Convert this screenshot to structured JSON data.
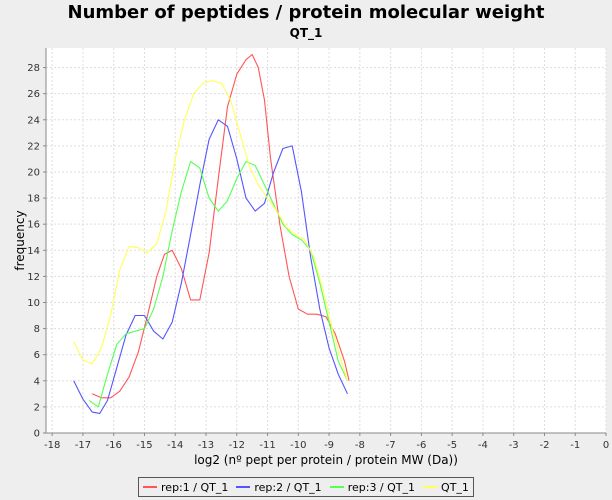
{
  "chart_data": {
    "type": "line",
    "title": "Number of peptides / protein molecular weight",
    "subtitle": "QT_1",
    "xlabel": "log2 (nº pept per protein / protein MW (Da))",
    "ylabel": "frequency",
    "xlim": [
      -18.2,
      0
    ],
    "ylim": [
      0,
      29.5
    ],
    "xticks": [
      -18,
      -17,
      -16,
      -15,
      -14,
      -13,
      -12,
      -11,
      -10,
      -9,
      -8,
      -7,
      -6,
      -5,
      -4,
      -3,
      -2,
      -1,
      0
    ],
    "yticks": [
      0,
      2,
      4,
      6,
      8,
      10,
      12,
      14,
      16,
      18,
      20,
      22,
      24,
      26,
      28
    ],
    "grid": true,
    "legend_position": "bottom",
    "series": [
      {
        "name": "rep:1 / QT_1",
        "color": "#ff5555",
        "x": [
          -16.7,
          -16.4,
          -16.1,
          -15.8,
          -15.5,
          -15.2,
          -14.9,
          -14.6,
          -14.35,
          -14.1,
          -13.8,
          -13.5,
          -13.2,
          -12.9,
          -12.6,
          -12.3,
          -12.0,
          -11.7,
          -11.5,
          -11.3,
          -11.1,
          -10.9,
          -10.6,
          -10.3,
          -10.0,
          -9.7,
          -9.4,
          -9.1,
          -8.8,
          -8.5,
          -8.35
        ],
        "values": [
          3.0,
          2.7,
          2.7,
          3.2,
          4.3,
          6.2,
          9.0,
          12.0,
          13.7,
          14.0,
          12.6,
          10.2,
          10.2,
          13.8,
          19.5,
          25.0,
          27.5,
          28.6,
          29.0,
          28.0,
          25.5,
          21.0,
          16.0,
          12.0,
          9.5,
          9.1,
          9.1,
          8.9,
          7.6,
          5.5,
          4.0
        ]
      },
      {
        "name": "rep:2 / QT_1",
        "color": "#5555ff",
        "x": [
          -17.3,
          -17.0,
          -16.7,
          -16.45,
          -16.2,
          -15.9,
          -15.6,
          -15.3,
          -15.0,
          -14.7,
          -14.4,
          -14.1,
          -13.8,
          -13.5,
          -13.2,
          -12.9,
          -12.6,
          -12.3,
          -12.0,
          -11.7,
          -11.4,
          -11.1,
          -10.8,
          -10.5,
          -10.2,
          -9.9,
          -9.6,
          -9.3,
          -9.0,
          -8.7,
          -8.4
        ],
        "values": [
          4.0,
          2.6,
          1.6,
          1.5,
          2.5,
          5.0,
          7.5,
          9.0,
          9.0,
          7.8,
          7.2,
          8.5,
          11.5,
          15.2,
          19.0,
          22.5,
          24.0,
          23.5,
          21.0,
          18.0,
          17.0,
          17.6,
          20.0,
          21.8,
          22.0,
          18.5,
          13.5,
          9.5,
          6.5,
          4.5,
          3.0
        ]
      },
      {
        "name": "rep:3 / QT_1",
        "color": "#55ff55",
        "x": [
          -16.8,
          -16.5,
          -16.2,
          -15.9,
          -15.6,
          -15.3,
          -15.0,
          -14.7,
          -14.4,
          -14.1,
          -13.8,
          -13.5,
          -13.2,
          -12.9,
          -12.6,
          -12.3,
          -12.0,
          -11.7,
          -11.4,
          -11.1,
          -10.8,
          -10.5,
          -10.2,
          -9.9,
          -9.6,
          -9.3,
          -9.0,
          -8.7,
          -8.4
        ],
        "values": [
          2.5,
          2.0,
          4.5,
          6.8,
          7.6,
          7.8,
          8.0,
          9.5,
          12.0,
          15.5,
          18.5,
          20.8,
          20.3,
          18.0,
          17.0,
          17.8,
          19.5,
          20.8,
          20.5,
          19.0,
          17.5,
          16.0,
          15.2,
          14.8,
          14.0,
          11.5,
          8.5,
          5.5,
          4.0
        ]
      },
      {
        "name": "QT_1",
        "color": "#ffff55",
        "x": [
          -17.3,
          -17.0,
          -16.7,
          -16.4,
          -16.1,
          -15.8,
          -15.5,
          -15.2,
          -14.9,
          -14.6,
          -14.3,
          -14.0,
          -13.7,
          -13.4,
          -13.1,
          -12.8,
          -12.5,
          -12.2,
          -11.9,
          -11.6,
          -11.3,
          -11.0,
          -10.7,
          -10.4,
          -10.1,
          -9.8,
          -9.5,
          -9.2,
          -8.9,
          -8.6,
          -8.4
        ],
        "values": [
          7.0,
          5.6,
          5.3,
          6.5,
          9.0,
          12.5,
          14.3,
          14.2,
          13.8,
          14.5,
          17.0,
          21.0,
          24.0,
          26.0,
          26.8,
          27.0,
          26.8,
          25.5,
          23.0,
          20.5,
          19.0,
          18.0,
          17.0,
          15.8,
          15.2,
          14.8,
          13.5,
          11.0,
          8.0,
          5.5,
          4.0
        ]
      }
    ]
  }
}
